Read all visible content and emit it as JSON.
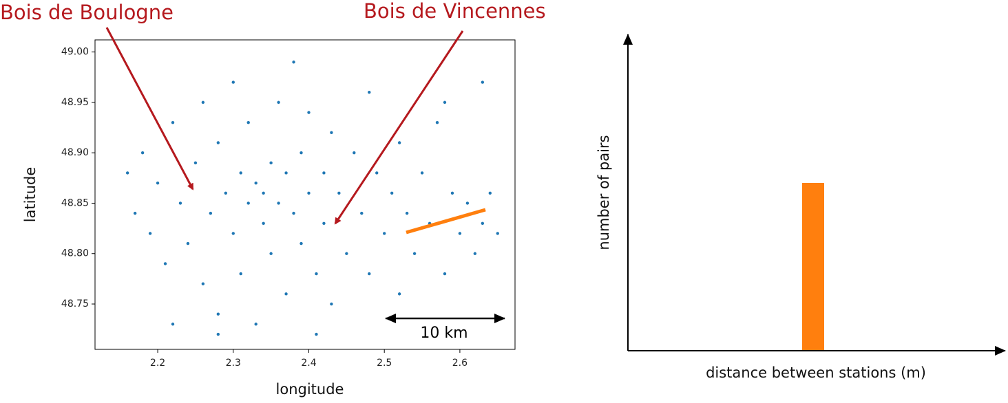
{
  "chart_data": [
    {
      "type": "scatter",
      "xlabel": "longitude",
      "ylabel": "latitude",
      "color": "#1f77b4",
      "xlim": [
        2.117,
        2.673
      ],
      "ylim": [
        48.705,
        49.012
      ],
      "xticks": [
        2.2,
        2.3,
        2.4,
        2.5,
        2.6
      ],
      "yticks": [
        {
          "value": 49,
          "label": "49.00"
        },
        48.95,
        {
          "value": 48.9,
          "label": "48.90"
        },
        48.85,
        {
          "value": 48.8,
          "label": "48.80"
        },
        48.75
      ],
      "annotations": [
        "Bois de Boulogne",
        "Bois de Vincennes",
        "10 km"
      ],
      "x": [
        2.16,
        2.17,
        2.18,
        2.19,
        2.2,
        2.21,
        2.22,
        2.23,
        2.24,
        2.25,
        2.26,
        2.26,
        2.27,
        2.28,
        2.28,
        2.29,
        2.3,
        2.3,
        2.31,
        2.31,
        2.32,
        2.32,
        2.33,
        2.33,
        2.34,
        2.34,
        2.35,
        2.35,
        2.36,
        2.36,
        2.37,
        2.37,
        2.38,
        2.38,
        2.39,
        2.39,
        2.4,
        2.4,
        2.41,
        2.42,
        2.42,
        2.43,
        2.43,
        2.44,
        2.45,
        2.46,
        2.47,
        2.48,
        2.48,
        2.49,
        2.5,
        2.51,
        2.52,
        2.52,
        2.53,
        2.54,
        2.55,
        2.56,
        2.57,
        2.58,
        2.59,
        2.6,
        2.61,
        2.62,
        2.63,
        2.64,
        2.65,
        2.22,
        2.28,
        2.41,
        2.58,
        2.63
      ],
      "y": [
        48.88,
        48.84,
        48.9,
        48.82,
        48.87,
        48.79,
        48.93,
        48.85,
        48.81,
        48.89,
        48.77,
        48.95,
        48.84,
        48.91,
        48.74,
        48.86,
        48.82,
        48.97,
        48.88,
        48.78,
        48.85,
        48.93,
        48.87,
        48.73,
        48.86,
        48.83,
        48.89,
        48.8,
        48.85,
        48.95,
        48.88,
        48.76,
        48.84,
        48.99,
        48.9,
        48.81,
        48.86,
        48.94,
        48.78,
        48.88,
        48.83,
        48.92,
        48.75,
        48.86,
        48.8,
        48.9,
        48.84,
        48.96,
        48.78,
        48.88,
        48.82,
        48.86,
        48.91,
        48.76,
        48.84,
        48.8,
        48.88,
        48.83,
        48.93,
        48.78,
        48.86,
        48.82,
        48.85,
        48.8,
        48.83,
        48.86,
        48.82,
        48.73,
        48.72,
        48.72,
        48.95,
        48.97
      ]
    },
    {
      "type": "schematic-histogram",
      "xlabel": "distance between stations (m)",
      "ylabel": "number of pairs",
      "color": "#ff7f0e"
    }
  ]
}
